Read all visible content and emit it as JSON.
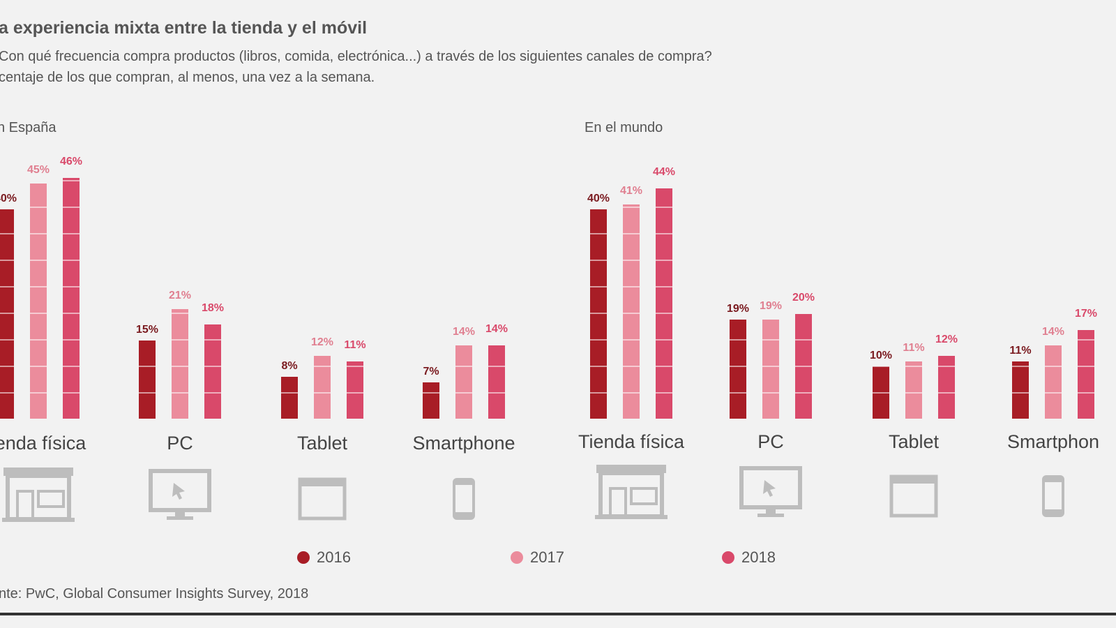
{
  "title": "a experiencia mixta entre la tienda y el móvil",
  "subtitle1": "Con qué frecuencia compra productos (libros, comida, electrónica...) a través de los siguientes canales de compra?",
  "subtitle2": "centaje de los que compran, al menos, una vez a la semana.",
  "source": "nte: PwC, Global Consumer Insights Survey, 2018",
  "colors": {
    "2016": "#a81d26",
    "2017": "#eb8c9c",
    "2018": "#d9496a"
  },
  "chart_data": [
    {
      "type": "bar",
      "title": "n España",
      "categories": [
        "ienda física",
        "PC",
        "Tablet",
        "Smartphone"
      ],
      "series": [
        {
          "name": "2016",
          "values": [
            40,
            15,
            8,
            7
          ]
        },
        {
          "name": "2017",
          "values": [
            45,
            21,
            12,
            14
          ]
        },
        {
          "name": "2018",
          "values": [
            46,
            18,
            11,
            14
          ]
        }
      ],
      "unit": "%",
      "ylim": [
        0,
        50
      ]
    },
    {
      "type": "bar",
      "title": "En el mundo",
      "categories": [
        "Tienda física",
        "PC",
        "Tablet",
        "Smartphon"
      ],
      "series": [
        {
          "name": "2016",
          "values": [
            40,
            19,
            10,
            11
          ]
        },
        {
          "name": "2017",
          "values": [
            41,
            19,
            11,
            14
          ]
        },
        {
          "name": "2018",
          "values": [
            44,
            20,
            12,
            17
          ]
        }
      ],
      "unit": "%",
      "ylim": [
        0,
        50
      ]
    }
  ],
  "icons": [
    "store-icon",
    "monitor-icon",
    "tablet-icon",
    "smartphone-icon"
  ],
  "legend": [
    "2016",
    "2017",
    "2018"
  ]
}
